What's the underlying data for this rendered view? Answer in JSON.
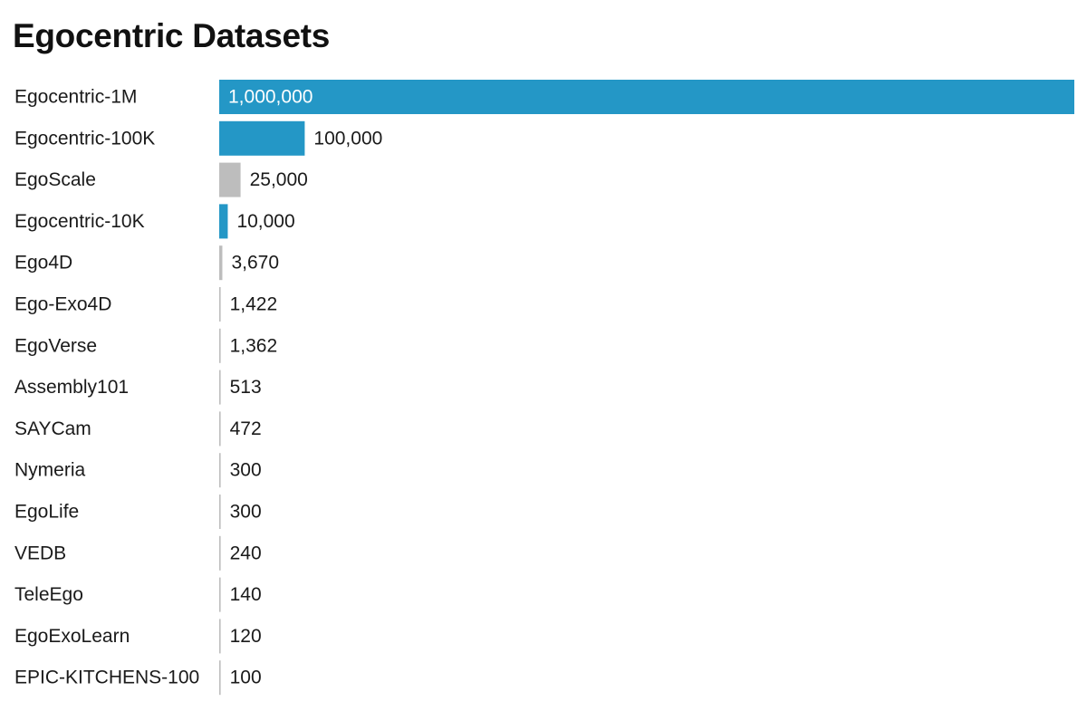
{
  "chart_data": {
    "type": "bar",
    "orientation": "horizontal",
    "title": "Egocentric Datasets",
    "xlabel": "",
    "ylabel": "",
    "grid": false,
    "legend": "none",
    "xlim": [
      0,
      1000000
    ],
    "categories": [
      "Egocentric-1M",
      "Egocentric-100K",
      "EgoScale",
      "Egocentric-10K",
      "Ego4D",
      "Ego-Exo4D",
      "EgoVerse",
      "Assembly101",
      "SAYCam",
      "Nymeria",
      "EgoLife",
      "VEDB",
      "TeleEgo",
      "EgoExoLearn",
      "EPIC-KITCHENS-100"
    ],
    "values": [
      1000000,
      100000,
      25000,
      10000,
      3670,
      1422,
      1362,
      513,
      472,
      300,
      300,
      240,
      140,
      120,
      100
    ],
    "value_labels": [
      "1,000,000",
      "100,000",
      "25,000",
      "10,000",
      "3,670",
      "1,422",
      "1,362",
      "513",
      "472",
      "300",
      "300",
      "240",
      "140",
      "120",
      "100"
    ],
    "bar_colors": [
      "#2497c6",
      "#2497c6",
      "#bdbdbd",
      "#2497c6",
      "#bdbdbd",
      "#bdbdbd",
      "#bdbdbd",
      "#bdbdbd",
      "#bdbdbd",
      "#bdbdbd",
      "#bdbdbd",
      "#bdbdbd",
      "#bdbdbd",
      "#bdbdbd",
      "#bdbdbd"
    ]
  },
  "colors": {
    "highlight": "#2497c6",
    "muted": "#bdbdbd",
    "text": "#1a1a1a",
    "background": "#ffffff"
  }
}
